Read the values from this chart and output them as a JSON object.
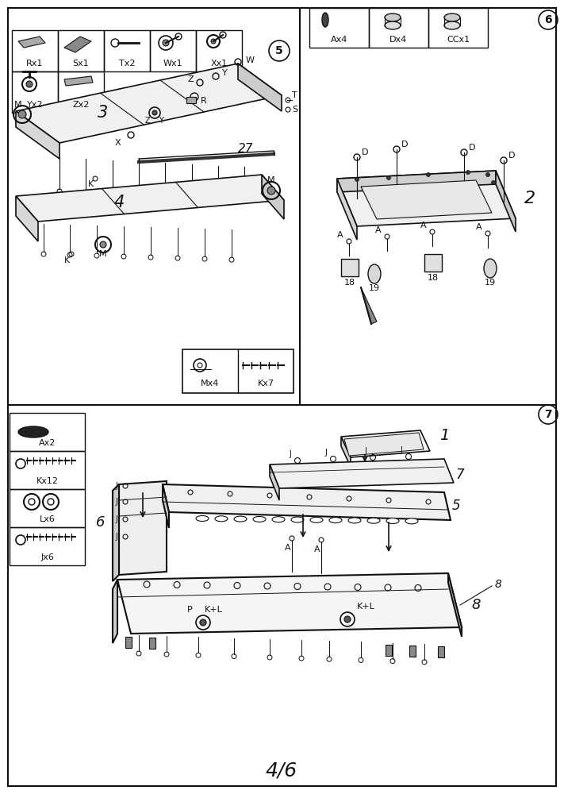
{
  "page_bg": "#ffffff",
  "border_color": "#111111",
  "line_color": "#111111",
  "text_color": "#111111",
  "page_number": "4/6",
  "step5_label": "5",
  "step6_label": "6",
  "step7_label": "7"
}
